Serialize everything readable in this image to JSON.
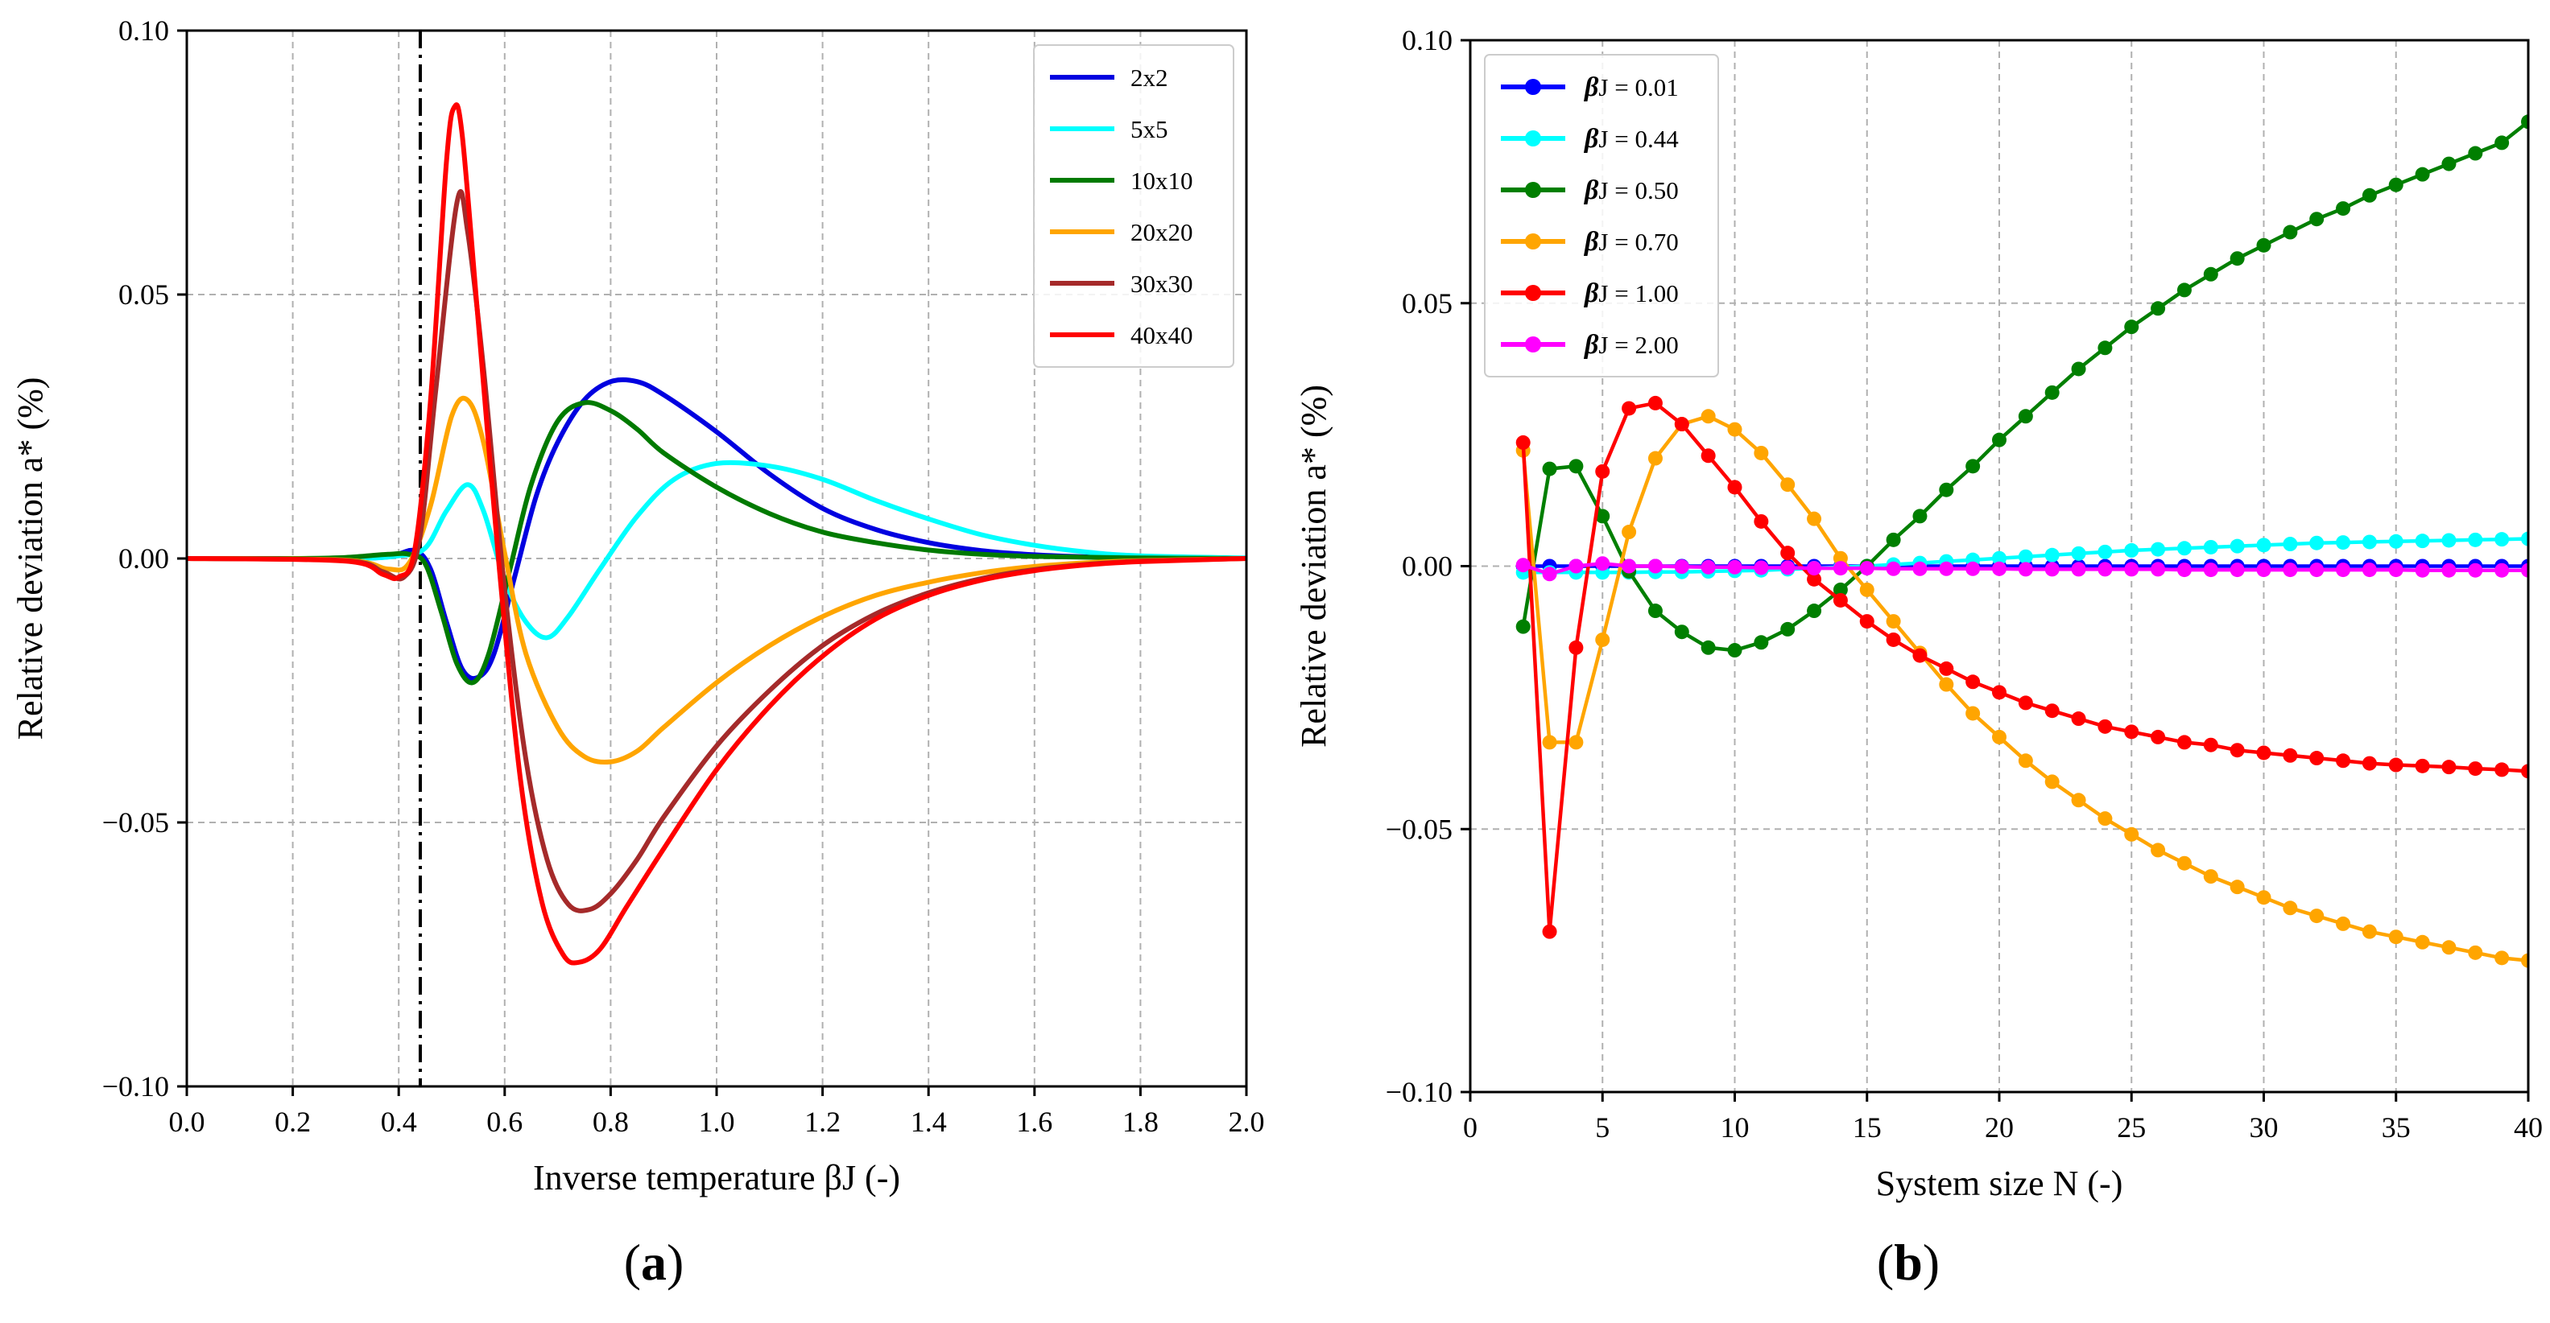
{
  "chart_data": [
    {
      "type": "line",
      "panel_label": {
        "open": "(",
        "letter": "a",
        "close": ")"
      },
      "xlabel": "Inverse temperature βJ (-)",
      "ylabel": "Relative deviation a* (%)",
      "xlim": [
        0.0,
        2.0
      ],
      "ylim": [
        -0.1,
        0.1
      ],
      "x_ticks": [
        0.0,
        0.2,
        0.4,
        0.6,
        0.8,
        1.0,
        1.2,
        1.4,
        1.6,
        1.8,
        2.0
      ],
      "x_tick_labels": [
        "0.0",
        "0.2",
        "0.4",
        "0.6",
        "0.8",
        "1.0",
        "1.2",
        "1.4",
        "1.6",
        "1.8",
        "2.0"
      ],
      "y_ticks": [
        -0.1,
        -0.05,
        0.0,
        0.05,
        0.1
      ],
      "y_tick_labels": [
        "−0.10",
        "−0.05",
        "0.00",
        "0.05",
        "0.10"
      ],
      "grid": true,
      "vline": {
        "x": 0.4407,
        "style": "dashdot",
        "color": "#000000"
      },
      "legend_position": "top-right",
      "series": [
        {
          "name": "2x2",
          "color": "#0000e0",
          "points": [
            [
              0.0,
              0.0
            ],
            [
              0.2,
              0.0
            ],
            [
              0.3,
              0.0
            ],
            [
              0.38,
              0.0003
            ],
            [
              0.43,
              0.0015
            ],
            [
              0.46,
              -0.002
            ],
            [
              0.49,
              -0.012
            ],
            [
              0.52,
              -0.021
            ],
            [
              0.55,
              -0.0225
            ],
            [
              0.58,
              -0.018
            ],
            [
              0.62,
              -0.003
            ],
            [
              0.66,
              0.012
            ],
            [
              0.7,
              0.022
            ],
            [
              0.75,
              0.03
            ],
            [
              0.8,
              0.0335
            ],
            [
              0.85,
              0.0335
            ],
            [
              0.9,
              0.031
            ],
            [
              1.0,
              0.024
            ],
            [
              1.1,
              0.016
            ],
            [
              1.2,
              0.0095
            ],
            [
              1.3,
              0.0055
            ],
            [
              1.4,
              0.003
            ],
            [
              1.5,
              0.0015
            ],
            [
              1.6,
              0.0007
            ],
            [
              1.7,
              0.0003
            ],
            [
              1.8,
              0.0001
            ],
            [
              2.0,
              0.0
            ]
          ]
        },
        {
          "name": "5x5",
          "color": "#00ffff",
          "points": [
            [
              0.0,
              0.0
            ],
            [
              0.3,
              0.0
            ],
            [
              0.4,
              0.0005
            ],
            [
              0.45,
              0.002
            ],
            [
              0.49,
              0.009
            ],
            [
              0.53,
              0.014
            ],
            [
              0.56,
              0.009
            ],
            [
              0.6,
              -0.004
            ],
            [
              0.64,
              -0.012
            ],
            [
              0.68,
              -0.015
            ],
            [
              0.72,
              -0.011
            ],
            [
              0.78,
              -0.002
            ],
            [
              0.85,
              0.008
            ],
            [
              0.92,
              0.015
            ],
            [
              1.0,
              0.018
            ],
            [
              1.1,
              0.0175
            ],
            [
              1.2,
              0.015
            ],
            [
              1.3,
              0.011
            ],
            [
              1.4,
              0.0075
            ],
            [
              1.5,
              0.0045
            ],
            [
              1.6,
              0.0025
            ],
            [
              1.7,
              0.0012
            ],
            [
              1.8,
              0.0005
            ],
            [
              2.0,
              0.0001
            ]
          ]
        },
        {
          "name": "10x10",
          "color": "#007a00",
          "points": [
            [
              0.0,
              0.0
            ],
            [
              0.2,
              0.0
            ],
            [
              0.3,
              0.0002
            ],
            [
              0.38,
              0.0008
            ],
            [
              0.42,
              0.0008
            ],
            [
              0.45,
              -0.001
            ],
            [
              0.48,
              -0.01
            ],
            [
              0.51,
              -0.02
            ],
            [
              0.54,
              -0.0235
            ],
            [
              0.57,
              -0.018
            ],
            [
              0.61,
              -0.002
            ],
            [
              0.65,
              0.014
            ],
            [
              0.7,
              0.026
            ],
            [
              0.75,
              0.0295
            ],
            [
              0.8,
              0.028
            ],
            [
              0.85,
              0.0245
            ],
            [
              0.9,
              0.02
            ],
            [
              1.0,
              0.0135
            ],
            [
              1.1,
              0.0085
            ],
            [
              1.2,
              0.005
            ],
            [
              1.3,
              0.003
            ],
            [
              1.4,
              0.0016
            ],
            [
              1.5,
              0.0008
            ],
            [
              1.6,
              0.0004
            ],
            [
              1.8,
              0.0001
            ],
            [
              2.0,
              0.0
            ]
          ]
        },
        {
          "name": "20x20",
          "color": "#ffa500",
          "points": [
            [
              0.0,
              0.0
            ],
            [
              0.3,
              -0.0003
            ],
            [
              0.38,
              -0.002
            ],
            [
              0.42,
              -0.0008
            ],
            [
              0.46,
              0.01
            ],
            [
              0.5,
              0.027
            ],
            [
              0.53,
              0.03
            ],
            [
              0.56,
              0.022
            ],
            [
              0.6,
              0.001
            ],
            [
              0.64,
              -0.018
            ],
            [
              0.7,
              -0.032
            ],
            [
              0.75,
              -0.0375
            ],
            [
              0.8,
              -0.0385
            ],
            [
              0.85,
              -0.0365
            ],
            [
              0.9,
              -0.032
            ],
            [
              1.0,
              -0.0235
            ],
            [
              1.1,
              -0.0165
            ],
            [
              1.2,
              -0.011
            ],
            [
              1.3,
              -0.007
            ],
            [
              1.4,
              -0.0045
            ],
            [
              1.5,
              -0.0027
            ],
            [
              1.6,
              -0.0015
            ],
            [
              1.7,
              -0.0008
            ],
            [
              1.8,
              -0.0004
            ],
            [
              2.0,
              0.0
            ]
          ]
        },
        {
          "name": "30x30",
          "color": "#a52a2a",
          "points": [
            [
              0.0,
              0.0
            ],
            [
              0.3,
              -0.0004
            ],
            [
              0.37,
              -0.0025
            ],
            [
              0.41,
              -0.0035
            ],
            [
              0.44,
              0.004
            ],
            [
              0.47,
              0.032
            ],
            [
              0.51,
              0.0675
            ],
            [
              0.53,
              0.062
            ],
            [
              0.56,
              0.036
            ],
            [
              0.6,
              -0.006
            ],
            [
              0.64,
              -0.038
            ],
            [
              0.68,
              -0.057
            ],
            [
              0.72,
              -0.0655
            ],
            [
              0.76,
              -0.0665
            ],
            [
              0.8,
              -0.0635
            ],
            [
              0.85,
              -0.057
            ],
            [
              0.9,
              -0.049
            ],
            [
              1.0,
              -0.0355
            ],
            [
              1.1,
              -0.025
            ],
            [
              1.2,
              -0.0165
            ],
            [
              1.3,
              -0.0105
            ],
            [
              1.4,
              -0.0065
            ],
            [
              1.5,
              -0.0038
            ],
            [
              1.6,
              -0.0021
            ],
            [
              1.7,
              -0.0011
            ],
            [
              1.8,
              -0.0005
            ],
            [
              2.0,
              0.0
            ]
          ]
        },
        {
          "name": "40x40",
          "color": "#ff0000",
          "points": [
            [
              0.0,
              0.0
            ],
            [
              0.3,
              -0.0005
            ],
            [
              0.37,
              -0.003
            ],
            [
              0.4,
              -0.0035
            ],
            [
              0.43,
              0.0015
            ],
            [
              0.46,
              0.03
            ],
            [
              0.49,
              0.075
            ],
            [
              0.505,
              0.0855
            ],
            [
              0.52,
              0.08
            ],
            [
              0.55,
              0.045
            ],
            [
              0.59,
              -0.002
            ],
            [
              0.63,
              -0.042
            ],
            [
              0.67,
              -0.065
            ],
            [
              0.71,
              -0.075
            ],
            [
              0.74,
              -0.0765
            ],
            [
              0.78,
              -0.074
            ],
            [
              0.83,
              -0.066
            ],
            [
              0.9,
              -0.055
            ],
            [
              1.0,
              -0.04
            ],
            [
              1.1,
              -0.028
            ],
            [
              1.2,
              -0.0185
            ],
            [
              1.3,
              -0.0115
            ],
            [
              1.4,
              -0.007
            ],
            [
              1.5,
              -0.0041
            ],
            [
              1.6,
              -0.0023
            ],
            [
              1.7,
              -0.0012
            ],
            [
              1.8,
              -0.0006
            ],
            [
              2.0,
              0.0
            ]
          ]
        }
      ]
    },
    {
      "type": "line",
      "panel_label": {
        "open": "(",
        "letter": "b",
        "close": ")"
      },
      "xlabel": "System size N (-)",
      "ylabel": "Relative deviation a* (%)",
      "xlim": [
        0,
        40
      ],
      "ylim": [
        -0.1,
        0.1
      ],
      "x_ticks": [
        0,
        5,
        10,
        15,
        20,
        25,
        30,
        35,
        40
      ],
      "x_tick_labels": [
        "0",
        "5",
        "10",
        "15",
        "20",
        "25",
        "30",
        "35",
        "40"
      ],
      "y_ticks": [
        -0.1,
        -0.05,
        0.0,
        0.05,
        0.1
      ],
      "y_tick_labels": [
        "−0.10",
        "−0.05",
        "0.00",
        "0.05",
        "0.10"
      ],
      "grid": true,
      "markers": true,
      "legend_position": "top-left",
      "x": [
        2,
        3,
        4,
        5,
        6,
        7,
        8,
        9,
        10,
        11,
        12,
        13,
        14,
        15,
        16,
        17,
        18,
        19,
        20,
        21,
        22,
        23,
        24,
        25,
        26,
        27,
        28,
        29,
        30,
        31,
        32,
        33,
        34,
        35,
        36,
        37,
        38,
        39,
        40
      ],
      "series": [
        {
          "name": "βJ = 0.01",
          "beta": "β",
          "rest": "J = 0.01",
          "color": "#0000ff",
          "values": [
            0,
            0,
            0,
            0,
            0,
            0,
            0,
            0,
            0,
            0,
            0,
            0,
            0,
            0,
            0,
            0,
            0,
            0,
            0,
            0,
            0,
            0,
            0,
            0,
            0,
            0,
            0,
            0,
            0,
            0,
            0,
            0,
            0,
            0,
            0,
            0,
            0,
            0,
            0
          ]
        },
        {
          "name": "βJ = 0.44",
          "beta": "β",
          "rest": "J = 0.44",
          "color": "#00ffff",
          "values": [
            -0.0012,
            -0.0012,
            -0.0012,
            -0.0012,
            -0.0012,
            -0.0011,
            -0.0011,
            -0.001,
            -0.0009,
            -0.0008,
            -0.0006,
            -0.0004,
            -0.0002,
            0.0,
            0.0003,
            0.0006,
            0.0009,
            0.0012,
            0.0015,
            0.0018,
            0.0021,
            0.0024,
            0.0027,
            0.003,
            0.0032,
            0.0034,
            0.0036,
            0.0038,
            0.004,
            0.0042,
            0.0044,
            0.0045,
            0.0046,
            0.0047,
            0.0048,
            0.0049,
            0.005,
            0.0051,
            0.0052
          ]
        },
        {
          "name": "βJ = 0.50",
          "beta": "β",
          "rest": "J = 0.50",
          "color": "#007f00",
          "values": [
            -0.0115,
            0.0185,
            0.019,
            0.0095,
            -0.001,
            -0.0085,
            -0.0125,
            -0.0155,
            -0.016,
            -0.0145,
            -0.012,
            -0.0085,
            -0.0045,
            0.0,
            0.005,
            0.0095,
            0.0145,
            0.019,
            0.024,
            0.0285,
            0.033,
            0.0375,
            0.0415,
            0.0455,
            0.049,
            0.0525,
            0.0555,
            0.0585,
            0.061,
            0.0635,
            0.066,
            0.068,
            0.0705,
            0.0725,
            0.0745,
            0.0765,
            0.0785,
            0.0805,
            0.0845
          ]
        },
        {
          "name": "βJ = 0.70",
          "beta": "β",
          "rest": "J = 0.70",
          "color": "#ffa500",
          "values": [
            0.022,
            -0.0335,
            -0.0335,
            -0.014,
            0.0065,
            0.0205,
            0.027,
            0.0285,
            0.026,
            0.0215,
            0.0155,
            0.009,
            0.0015,
            -0.0045,
            -0.0105,
            -0.0165,
            -0.0225,
            -0.028,
            -0.0325,
            -0.037,
            -0.041,
            -0.0445,
            -0.048,
            -0.051,
            -0.054,
            -0.0565,
            -0.059,
            -0.061,
            -0.063,
            -0.065,
            -0.0665,
            -0.068,
            -0.0695,
            -0.0705,
            -0.0715,
            -0.0725,
            -0.0735,
            -0.0745,
            -0.075
          ]
        },
        {
          "name": "βJ = 1.00",
          "beta": "β",
          "rest": "J = 1.00",
          "color": "#ff0000",
          "values": [
            0.0235,
            -0.0695,
            -0.0155,
            0.018,
            0.03,
            0.031,
            0.027,
            0.021,
            0.015,
            0.0085,
            0.0025,
            -0.0025,
            -0.0065,
            -0.0105,
            -0.014,
            -0.017,
            -0.0195,
            -0.022,
            -0.024,
            -0.026,
            -0.0275,
            -0.029,
            -0.0305,
            -0.0315,
            -0.0325,
            -0.0335,
            -0.034,
            -0.035,
            -0.0355,
            -0.036,
            -0.0365,
            -0.037,
            -0.0375,
            -0.0378,
            -0.038,
            -0.0382,
            -0.0385,
            -0.0387,
            -0.039
          ]
        },
        {
          "name": "βJ = 2.00",
          "beta": "β",
          "rest": "J = 2.00",
          "color": "#ff00ff",
          "values": [
            0.0002,
            -0.0015,
            0.0,
            0.0005,
            0.0,
            0.0,
            -0.0001,
            -0.0002,
            -0.0002,
            -0.0003,
            -0.0003,
            -0.0004,
            -0.0004,
            -0.0004,
            -0.0005,
            -0.0005,
            -0.0005,
            -0.0005,
            -0.0005,
            -0.0006,
            -0.0006,
            -0.0006,
            -0.0006,
            -0.0006,
            -0.0006,
            -0.0007,
            -0.0007,
            -0.0007,
            -0.0007,
            -0.0007,
            -0.0007,
            -0.0007,
            -0.0007,
            -0.0007,
            -0.0008,
            -0.0008,
            -0.0008,
            -0.0008,
            -0.0008
          ]
        }
      ]
    }
  ]
}
